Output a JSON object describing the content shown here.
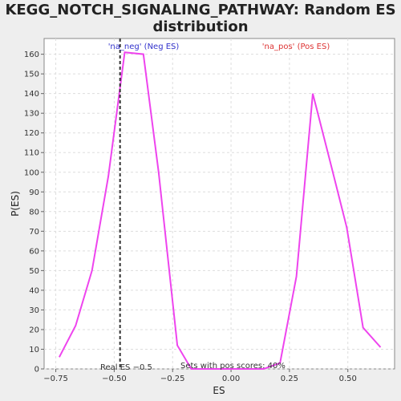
{
  "title_line1": "KEGG_NOTCH_SIGNALING_PATHWAY: Random ES",
  "title_line2": "distribution",
  "chart_data": {
    "type": "line",
    "xlabel": "ES",
    "ylabel": "P(ES)",
    "xlim": [
      -0.8,
      0.7
    ],
    "ylim": [
      0,
      168
    ],
    "xticks": [
      -0.75,
      -0.5,
      -0.25,
      0.0,
      0.25,
      0.5
    ],
    "xtick_labels": [
      "−0.75",
      "−0.50",
      "−0.25",
      "0.00",
      "0.25",
      "0.50"
    ],
    "yticks": [
      0,
      10,
      20,
      30,
      40,
      50,
      60,
      70,
      80,
      90,
      100,
      110,
      120,
      130,
      140,
      150,
      160
    ],
    "grid": true,
    "series": [
      {
        "color": "#ee44ee",
        "x": [
          -0.735,
          -0.665,
          -0.595,
          -0.525,
          -0.455,
          -0.375,
          -0.31,
          -0.23,
          -0.17,
          -0.06,
          0.0,
          0.06,
          0.14,
          0.21,
          0.28,
          0.35,
          0.425,
          0.495,
          0.565,
          0.64
        ],
        "y": [
          6,
          22,
          50,
          98,
          161,
          160,
          100,
          12,
          0,
          0,
          0,
          0,
          0,
          3,
          47,
          140,
          105,
          72,
          21,
          11
        ]
      }
    ],
    "vline": {
      "x": -0.475,
      "style": "dashed",
      "color": "#333333"
    },
    "annotations": {
      "neg_label": "'na_neg' (Neg ES)",
      "pos_label": "'na_pos' (Pos ES)",
      "real_es": "Real ES −0.5",
      "pos_scores": "Sets with pos scores: 40%"
    },
    "colors": {
      "neg": "#3333cc",
      "pos": "#dd3333",
      "curve": "#ee44ee"
    }
  }
}
